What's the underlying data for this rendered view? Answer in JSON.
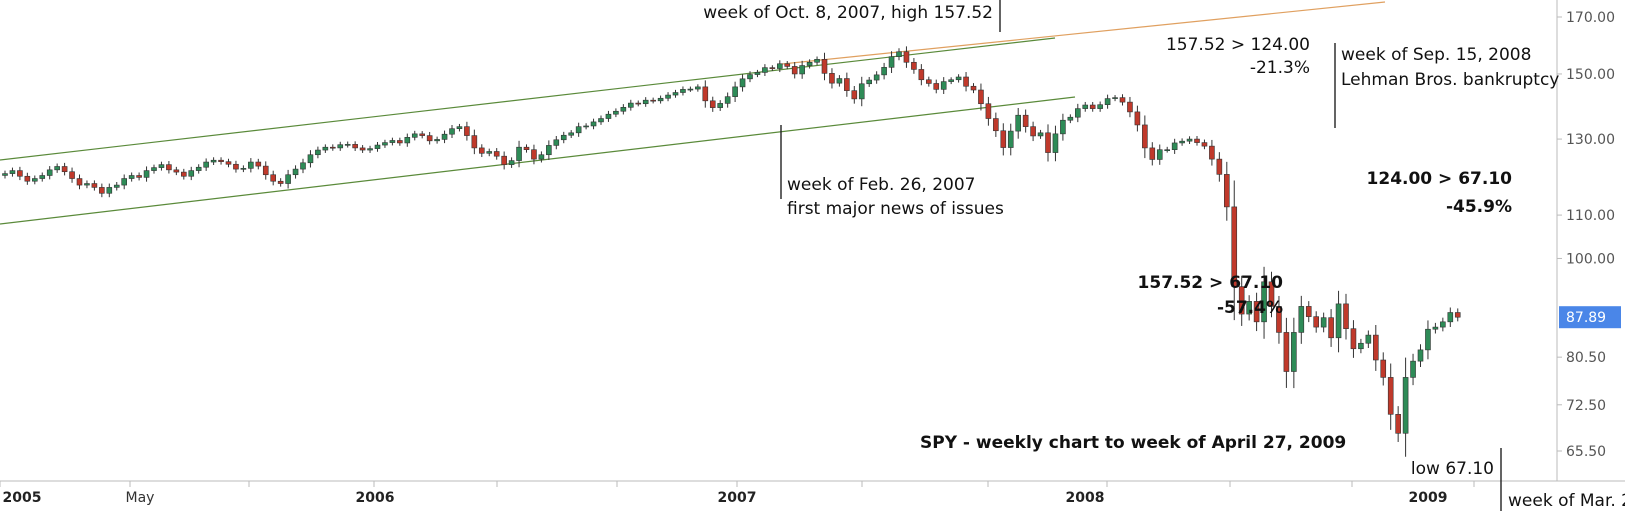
{
  "chart_data": {
    "type": "candlestick",
    "title": "SPY - weekly chart to week of April 27, 2009",
    "y_scale": "log",
    "ylim": [
      62,
      175
    ],
    "y_ticks": [
      "170.00",
      "150.00",
      "130.00",
      "110.00",
      "100.00",
      "80.50",
      "72.50",
      "65.50"
    ],
    "x_ticks": [
      {
        "label": "2005",
        "major": true
      },
      {
        "label": "May",
        "major": false
      },
      {
        "label": "2006",
        "major": true
      },
      {
        "label": "2007",
        "major": true
      },
      {
        "label": "2008",
        "major": true
      },
      {
        "label": "2009",
        "major": true
      }
    ],
    "last_price": "87.89",
    "colors": {
      "up": "#2e8b57",
      "down": "#c0392b",
      "channel": "#5a8a3a",
      "resistance": "#e0a060",
      "price_tag": "#4a86e8",
      "axis": "#bbbbbb"
    },
    "closes": [
      120.5,
      121.3,
      119.8,
      118.5,
      119.2,
      120.0,
      121.5,
      122.4,
      121.0,
      119.2,
      117.5,
      117.9,
      116.9,
      115.4,
      116.9,
      117.5,
      119.2,
      120.0,
      119.5,
      121.3,
      122.1,
      122.9,
      121.5,
      120.9,
      119.8,
      121.3,
      122.2,
      123.6,
      124.1,
      123.7,
      123.0,
      121.7,
      121.9,
      123.6,
      122.5,
      120.2,
      118.5,
      117.9,
      120.2,
      121.7,
      123.4,
      125.6,
      126.9,
      127.7,
      127.5,
      128.4,
      128.5,
      127.5,
      126.9,
      127.3,
      128.3,
      129.0,
      129.6,
      128.9,
      130.5,
      131.5,
      131.0,
      129.5,
      129.9,
      131.4,
      133.0,
      133.6,
      131.0,
      127.5,
      126.0,
      126.5,
      125.2,
      122.9,
      124.0,
      127.7,
      127.0,
      124.4,
      125.6,
      128.2,
      129.8,
      131.1,
      131.8,
      133.6,
      133.8,
      135.0,
      136.0,
      137.3,
      138.2,
      139.4,
      140.7,
      140.5,
      141.6,
      141.4,
      142.2,
      143.2,
      144.0,
      145.0,
      145.1,
      145.8,
      141.4,
      139.3,
      140.6,
      142.7,
      145.8,
      148.4,
      149.8,
      150.5,
      152.1,
      151.8,
      153.4,
      152.5,
      150.0,
      152.8,
      153.9,
      154.9,
      150.2,
      147.0,
      148.5,
      144.6,
      142.0,
      146.8,
      148.0,
      149.7,
      152.2,
      155.8,
      157.5,
      153.9,
      151.5,
      148.1,
      146.9,
      145.0,
      147.5,
      148.1,
      149.0,
      146.0,
      144.8,
      140.5,
      136.0,
      132.4,
      127.6,
      132.3,
      137.0,
      133.6,
      130.9,
      131.8,
      126.2,
      131.5,
      135.5,
      136.4,
      139.0,
      140.1,
      139.0,
      140.2,
      142.1,
      142.4,
      141.0,
      138.0,
      134.1,
      127.5,
      124.3,
      127.0,
      127.0,
      128.9,
      129.4,
      130.0,
      129.0,
      128.0,
      124.4,
      120.3,
      112.0,
      94.0,
      88.5,
      91.0,
      87.0,
      95.0,
      90.0,
      85.0,
      78.0,
      85.0,
      90.0,
      88.0,
      86.0,
      87.8,
      84.0,
      90.5,
      85.7,
      82.0,
      83.0,
      84.5,
      80.0,
      77.0,
      71.0,
      68.1,
      77.0,
      79.8,
      81.8,
      85.6,
      86.0,
      87.0,
      88.8,
      87.89
    ],
    "annotations": [
      {
        "id": "oct2007",
        "lines": [
          "week of Oct. 8, 2007, high 157.52"
        ]
      },
      {
        "id": "feb2007",
        "lines": [
          "week of Feb. 26, 2007",
          "first major news of issues"
        ]
      },
      {
        "id": "drop1",
        "lines": [
          "157.52 > 124.00",
          "-21.3%"
        ]
      },
      {
        "id": "lehman",
        "lines": [
          "week of Sep. 15, 2008",
          "Lehman Bros. bankruptcy"
        ]
      },
      {
        "id": "drop2",
        "lines": [
          "124.00 > 67.10",
          "-45.9%"
        ],
        "bold": true
      },
      {
        "id": "drop3",
        "lines": [
          "157.52 > 67.10",
          "-57.4%"
        ],
        "bold": true
      },
      {
        "id": "low",
        "lines": [
          "low 67.10"
        ]
      },
      {
        "id": "mar2009",
        "lines": [
          "week of Mar. 2"
        ]
      }
    ]
  }
}
